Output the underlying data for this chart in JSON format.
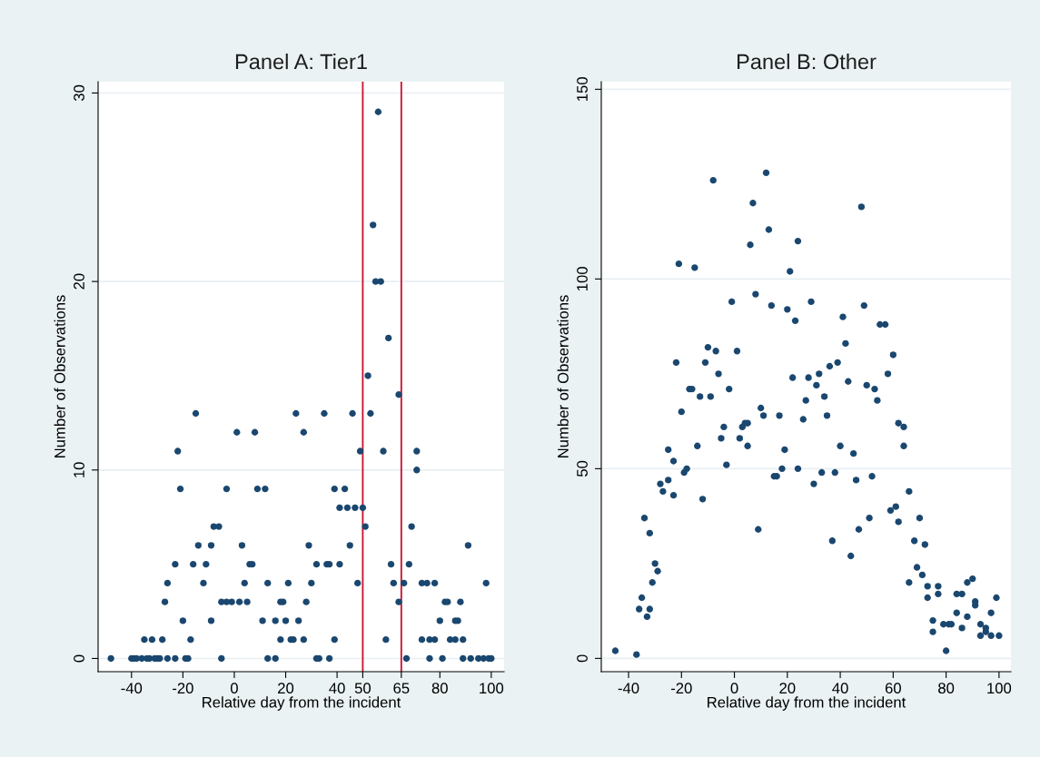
{
  "chart_data": [
    {
      "type": "scatter",
      "title": "Panel A: Tier1",
      "xlabel": "Relative day from the incident",
      "ylabel": "Number of Observations",
      "color": "#1a476f",
      "marker": "circle",
      "grid": "y",
      "x": [
        -48,
        -40,
        -39,
        -38,
        -36,
        -34,
        -33,
        -31,
        -30,
        -29,
        -26,
        -23,
        -19,
        -18,
        -5,
        13,
        16,
        -35,
        -32,
        -28,
        -17,
        18,
        22,
        23,
        -20,
        -9,
        11,
        16,
        20,
        25,
        -27,
        -5,
        -3,
        -1,
        2,
        5,
        18,
        19,
        -26,
        -12,
        4,
        13,
        21,
        -23,
        -16,
        -11,
        6,
        7,
        -14,
        -9,
        3,
        -8,
        -6,
        -21,
        -3,
        9,
        12,
        -22,
        1,
        8,
        -15,
        24,
        56,
        54,
        55,
        57,
        60,
        52,
        64,
        35,
        46,
        53,
        27,
        49,
        58,
        71,
        71,
        39,
        43,
        41,
        44,
        47,
        50,
        51,
        69,
        29,
        45,
        91,
        32,
        36,
        37,
        41,
        61,
        68,
        30,
        48,
        62,
        66,
        73,
        75,
        78,
        98,
        28,
        64,
        82,
        83,
        88,
        80,
        86,
        87,
        27,
        39,
        59,
        73,
        76,
        78,
        84,
        86,
        89,
        32,
        33,
        37,
        67,
        76,
        81,
        89,
        92,
        95,
        97,
        99,
        100
      ],
      "values": [
        0,
        0,
        0,
        0,
        0,
        0,
        0,
        0,
        0,
        0,
        0,
        0,
        0,
        0,
        0,
        0,
        0,
        1,
        1,
        1,
        1,
        1,
        1,
        1,
        2,
        2,
        2,
        2,
        2,
        2,
        3,
        3,
        3,
        3,
        3,
        3,
        3,
        3,
        4,
        4,
        4,
        4,
        4,
        5,
        5,
        5,
        5,
        5,
        6,
        6,
        6,
        7,
        7,
        9,
        9,
        9,
        9,
        11,
        12,
        12,
        13,
        13,
        29,
        23,
        20,
        20,
        17,
        15,
        14,
        13,
        13,
        13,
        12,
        11,
        11,
        11,
        10,
        9,
        9,
        8,
        8,
        8,
        8,
        7,
        7,
        6,
        6,
        6,
        5,
        5,
        5,
        5,
        5,
        5,
        4,
        4,
        4,
        4,
        4,
        4,
        4,
        4,
        3,
        3,
        3,
        3,
        3,
        2,
        2,
        2,
        1,
        1,
        1,
        1,
        1,
        1,
        1,
        1,
        1,
        0,
        0,
        0,
        0,
        0,
        0,
        0,
        0,
        0,
        0,
        0,
        0
      ],
      "xlim": [
        -53,
        105
      ],
      "ylim": [
        -0.7,
        30.6
      ],
      "xticks": [
        -40,
        -20,
        0,
        20,
        40,
        50,
        65,
        80,
        100
      ],
      "yticks": [
        0,
        10,
        20,
        30
      ],
      "ref_lines": [
        {
          "axis": "x",
          "value": 50,
          "color": "#c8102e"
        },
        {
          "axis": "x",
          "value": 65,
          "color": "#c8102e"
        }
      ]
    },
    {
      "type": "scatter",
      "title": "Panel B: Other",
      "xlabel": "Relative day from the incident",
      "ylabel": "Number of Observations",
      "color": "#1a476f",
      "marker": "circle",
      "grid": "y",
      "x": [
        -45,
        -37,
        -36,
        -33,
        -32,
        -35,
        -31,
        -29,
        -30,
        -34,
        -32,
        -28,
        -27,
        -25,
        -25,
        -23,
        -22,
        -23,
        -21,
        -20,
        -19,
        -18,
        -17,
        -16,
        -14,
        -15,
        -13,
        -12,
        -11,
        -10,
        -9,
        -7,
        -8,
        -6,
        -5,
        -4,
        -3,
        -2,
        -1,
        1,
        2,
        3,
        4,
        5,
        5,
        6,
        7,
        8,
        9,
        10,
        11,
        12,
        13,
        14,
        15,
        16,
        18,
        17,
        20,
        19,
        21,
        22,
        23,
        24,
        24,
        29,
        28,
        27,
        26,
        30,
        31,
        32,
        33,
        34,
        35,
        36,
        37,
        38,
        39,
        40,
        41,
        42,
        43,
        44,
        45,
        46,
        47,
        48,
        49,
        50,
        51,
        52,
        53,
        54,
        55,
        57,
        58,
        59,
        60,
        61,
        62,
        62,
        64,
        64,
        66,
        66,
        68,
        69,
        70,
        71,
        72,
        73,
        73,
        75,
        75,
        77,
        77,
        79,
        80,
        81,
        82,
        84,
        84,
        86,
        86,
        88,
        88,
        90,
        91,
        91,
        93,
        93,
        95,
        95,
        97,
        97,
        99,
        100
      ],
      "values": [
        2,
        1,
        13,
        11,
        13,
        16,
        20,
        23,
        25,
        37,
        33,
        46,
        44,
        47,
        55,
        52,
        78,
        43,
        104,
        65,
        49,
        50,
        71,
        71,
        56,
        103,
        69,
        42,
        78,
        82,
        69,
        81,
        126,
        75,
        58,
        61,
        51,
        71,
        94,
        81,
        58,
        61,
        62,
        62,
        56,
        109,
        120,
        96,
        34,
        66,
        64,
        128,
        113,
        93,
        48,
        48,
        50,
        64,
        92,
        55,
        102,
        74,
        89,
        50,
        110,
        94,
        74,
        68,
        63,
        46,
        72,
        75,
        49,
        69,
        64,
        77,
        31,
        49,
        78,
        56,
        90,
        83,
        73,
        27,
        54,
        47,
        34,
        119,
        93,
        72,
        37,
        48,
        71,
        68,
        88,
        88,
        75,
        39,
        80,
        40,
        36,
        62,
        61,
        56,
        20,
        44,
        31,
        24,
        37,
        22,
        30,
        19,
        16,
        10,
        7,
        19,
        17,
        9,
        2,
        9,
        9,
        12,
        17,
        17,
        8,
        20,
        11,
        21,
        14,
        15,
        9,
        6,
        8,
        7,
        12,
        6,
        16,
        6
      ],
      "xlim": [
        -50.3,
        104.5
      ],
      "ylim": [
        -3.5,
        152
      ],
      "xticks": [
        -40,
        -20,
        0,
        20,
        40,
        60,
        80,
        100
      ],
      "yticks": [
        0,
        50,
        100,
        150
      ]
    }
  ]
}
